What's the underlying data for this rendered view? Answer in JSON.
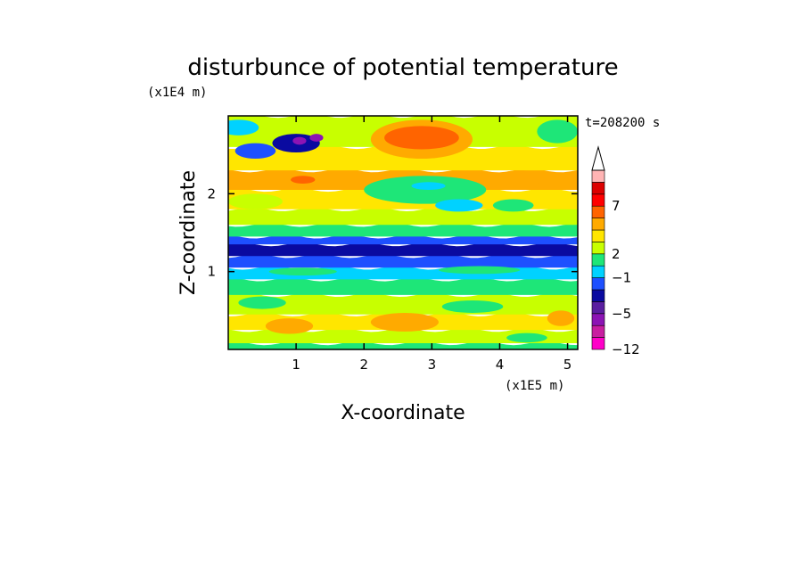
{
  "chart_data": {
    "type": "heatmap",
    "title": "disturbunce of potential temperature",
    "y_unit_label": "(x1E4 m)",
    "x_unit_label": "(x1E5 m)",
    "xlabel": "X-coordinate",
    "ylabel": "Z-coordinate",
    "time_label": "t=208200 s",
    "x_ticks": [
      "1",
      "2",
      "3",
      "4",
      "5"
    ],
    "y_ticks": [
      "1",
      "2"
    ],
    "xlim": [
      0,
      5.15
    ],
    "ylim": [
      0,
      3.0
    ],
    "colorbar": {
      "tick_labels": [
        "7",
        "2",
        "-1",
        "-5",
        "-12"
      ],
      "colors": [
        "#ff00c8",
        "#c81ea0",
        "#8c14b4",
        "#5a1ea0",
        "#0a0aa0",
        "#1e50ff",
        "#00d2ff",
        "#1ee678",
        "#c8ff00",
        "#ffe600",
        "#ffaa00",
        "#ff6400",
        "#ff0000",
        "#dc0000",
        "#ffb4b4"
      ]
    },
    "bands": [
      {
        "z0": 0.0,
        "z1": 0.08,
        "color": "#1ee678"
      },
      {
        "z0": 0.08,
        "z1": 0.25,
        "color": "#c8ff00"
      },
      {
        "z0": 0.25,
        "z1": 0.45,
        "color": "#ffe600"
      },
      {
        "z0": 0.45,
        "z1": 0.7,
        "color": "#c8ff00"
      },
      {
        "z0": 0.7,
        "z1": 0.9,
        "color": "#1ee678"
      },
      {
        "z0": 0.9,
        "z1": 1.05,
        "color": "#00d2ff"
      },
      {
        "z0": 1.05,
        "z1": 1.2,
        "color": "#1e50ff"
      },
      {
        "z0": 1.2,
        "z1": 1.35,
        "color": "#0a0aa0"
      },
      {
        "z0": 1.35,
        "z1": 1.45,
        "color": "#1e50ff"
      },
      {
        "z0": 1.45,
        "z1": 1.6,
        "color": "#1ee678"
      },
      {
        "z0": 1.6,
        "z1": 1.8,
        "color": "#c8ff00"
      },
      {
        "z0": 1.8,
        "z1": 2.05,
        "color": "#ffe600"
      },
      {
        "z0": 2.05,
        "z1": 2.3,
        "color": "#ffaa00"
      },
      {
        "z0": 2.3,
        "z1": 2.6,
        "color": "#ffe600"
      },
      {
        "z0": 2.6,
        "z1": 3.0,
        "color": "#c8ff00"
      }
    ],
    "blobs": [
      {
        "x": 1.0,
        "z": 2.65,
        "rx": 0.35,
        "rz": 0.12,
        "color": "#0a0aa0"
      },
      {
        "x": 1.05,
        "z": 2.68,
        "rx": 0.1,
        "rz": 0.05,
        "color": "#8c14b4"
      },
      {
        "x": 1.3,
        "z": 2.72,
        "rx": 0.1,
        "rz": 0.05,
        "color": "#8c14b4"
      },
      {
        "x": 0.4,
        "z": 2.55,
        "rx": 0.3,
        "rz": 0.1,
        "color": "#1e50ff"
      },
      {
        "x": 0.15,
        "z": 2.85,
        "rx": 0.3,
        "rz": 0.1,
        "color": "#00d2ff"
      },
      {
        "x": 2.85,
        "z": 2.7,
        "rx": 0.75,
        "rz": 0.25,
        "color": "#ffaa00"
      },
      {
        "x": 2.85,
        "z": 2.72,
        "rx": 0.55,
        "rz": 0.15,
        "color": "#ff6400"
      },
      {
        "x": 1.2,
        "z": 2.15,
        "rx": 0.45,
        "rz": 0.1,
        "color": "#ffaa00"
      },
      {
        "x": 1.1,
        "z": 2.18,
        "rx": 0.18,
        "rz": 0.05,
        "color": "#ff6400"
      },
      {
        "x": 4.3,
        "z": 2.2,
        "rx": 0.35,
        "rz": 0.1,
        "color": "#ffaa00"
      },
      {
        "x": 4.85,
        "z": 2.8,
        "rx": 0.3,
        "rz": 0.15,
        "color": "#1ee678"
      },
      {
        "x": 2.9,
        "z": 2.05,
        "rx": 0.9,
        "rz": 0.18,
        "color": "#1ee678"
      },
      {
        "x": 2.95,
        "z": 2.1,
        "rx": 0.25,
        "rz": 0.05,
        "color": "#00d2ff"
      },
      {
        "x": 3.4,
        "z": 1.85,
        "rx": 0.35,
        "rz": 0.08,
        "color": "#00d2ff"
      },
      {
        "x": 4.2,
        "z": 1.85,
        "rx": 0.3,
        "rz": 0.08,
        "color": "#1ee678"
      },
      {
        "x": 0.4,
        "z": 1.9,
        "rx": 0.4,
        "rz": 0.1,
        "color": "#c8ff00"
      },
      {
        "x": 3.7,
        "z": 1.02,
        "rx": 0.6,
        "rz": 0.05,
        "color": "#1ee678"
      },
      {
        "x": 1.1,
        "z": 1.0,
        "rx": 0.5,
        "rz": 0.05,
        "color": "#1ee678"
      },
      {
        "x": 2.6,
        "z": 0.35,
        "rx": 0.5,
        "rz": 0.12,
        "color": "#ffaa00"
      },
      {
        "x": 0.9,
        "z": 0.3,
        "rx": 0.35,
        "rz": 0.1,
        "color": "#ffaa00"
      },
      {
        "x": 4.9,
        "z": 0.4,
        "rx": 0.2,
        "rz": 0.1,
        "color": "#ffaa00"
      },
      {
        "x": 3.6,
        "z": 0.55,
        "rx": 0.45,
        "rz": 0.08,
        "color": "#1ee678"
      },
      {
        "x": 4.4,
        "z": 0.15,
        "rx": 0.3,
        "rz": 0.06,
        "color": "#1ee678"
      },
      {
        "x": 0.5,
        "z": 0.6,
        "rx": 0.35,
        "rz": 0.08,
        "color": "#1ee678"
      }
    ]
  }
}
